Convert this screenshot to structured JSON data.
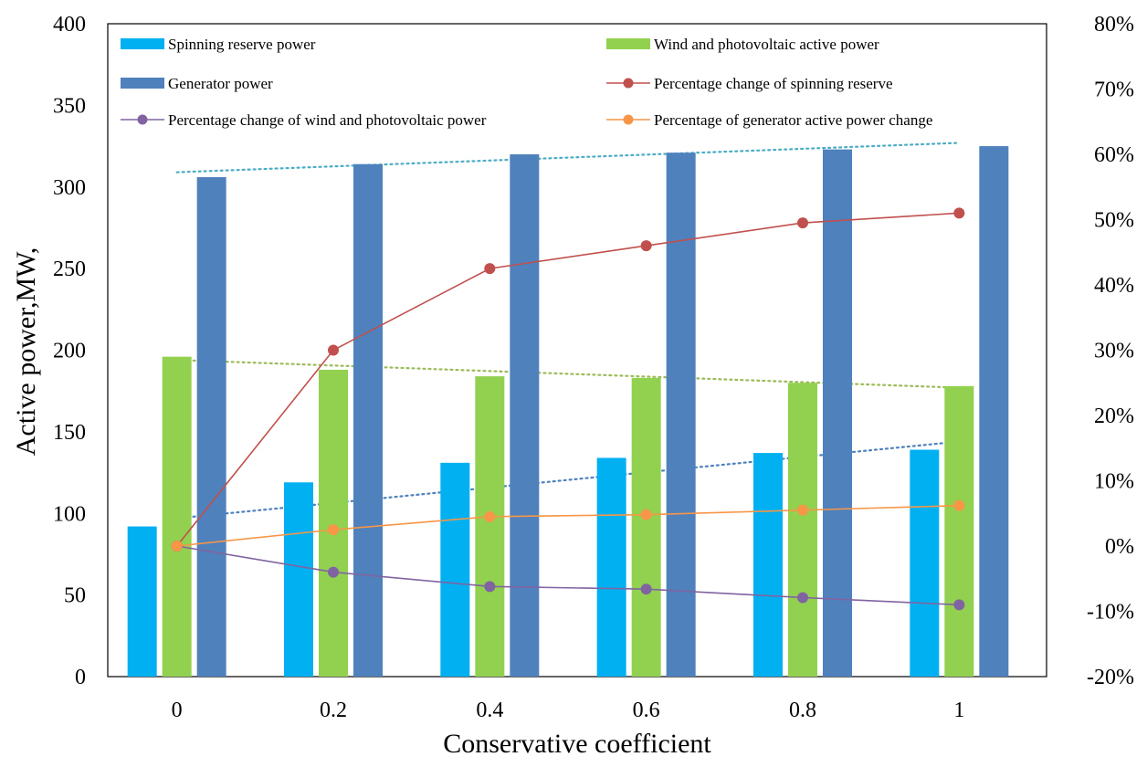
{
  "chart_data": {
    "type": "bar+line",
    "xlabel": "Conservative coefficient",
    "ylabel": "Active power,MW,",
    "categories": [
      "0",
      "0.2",
      "0.4",
      "0.6",
      "0.8",
      "1"
    ],
    "ylim": [
      0,
      400
    ],
    "y_ticks": [
      "0",
      "50",
      "100",
      "150",
      "200",
      "250",
      "300",
      "350",
      "400"
    ],
    "y2lim": [
      -20,
      80
    ],
    "y2_ticks": [
      "-20%",
      "-10%",
      "0%",
      "10%",
      "20%",
      "30%",
      "40%",
      "50%",
      "60%",
      "70%",
      "80%"
    ],
    "bar_series": [
      {
        "name": "Spinning reserve power",
        "color": "#00b0f0",
        "values": [
          92,
          119,
          131,
          134,
          137,
          139
        ]
      },
      {
        "name": "Wind and photovoltaic active power",
        "color": "#92d050",
        "values": [
          196,
          188,
          184,
          183,
          180,
          178
        ]
      },
      {
        "name": "Generator power",
        "color": "#4f81bd",
        "values": [
          306,
          314,
          320,
          321,
          323,
          325
        ]
      }
    ],
    "line_series": [
      {
        "name": "Percentage change of spinning reserve",
        "color": "#c0504d",
        "values": [
          0,
          30,
          42.5,
          46,
          49.5,
          51
        ]
      },
      {
        "name": "Percentage change of wind and photovoltaic power",
        "color": "#8064a2",
        "values": [
          0,
          -4,
          -6.2,
          -6.6,
          -7.9,
          -9
        ]
      },
      {
        "name": "Percentage of generator active power change",
        "color": "#f79646",
        "values": [
          0,
          2.5,
          4.5,
          4.8,
          5.5,
          6.2
        ]
      }
    ],
    "trendlines": [
      {
        "of": "Generator power",
        "color": "#4bacc6",
        "start": 309,
        "end": 327
      },
      {
        "of": "Wind and photovoltaic active power",
        "color": "#9bbb59",
        "start": 194,
        "end": 177
      },
      {
        "of": "Spinning reserve power",
        "color": "#4f81bd",
        "start": 97,
        "end": 144
      }
    ],
    "legend": {
      "items": [
        {
          "label": "Spinning reserve power",
          "kind": "bar",
          "color": "#00b0f0"
        },
        {
          "label": "Wind and photovoltaic active power",
          "kind": "bar",
          "color": "#92d050"
        },
        {
          "label": "Generator power",
          "kind": "bar",
          "color": "#4f81bd"
        },
        {
          "label": "Percentage change of spinning reserve",
          "kind": "line",
          "color": "#c0504d"
        },
        {
          "label": "Percentage change of wind and photovoltaic power",
          "kind": "line",
          "color": "#8064a2"
        },
        {
          "label": "Percentage of generator active power change",
          "kind": "line",
          "color": "#f79646"
        }
      ]
    }
  }
}
